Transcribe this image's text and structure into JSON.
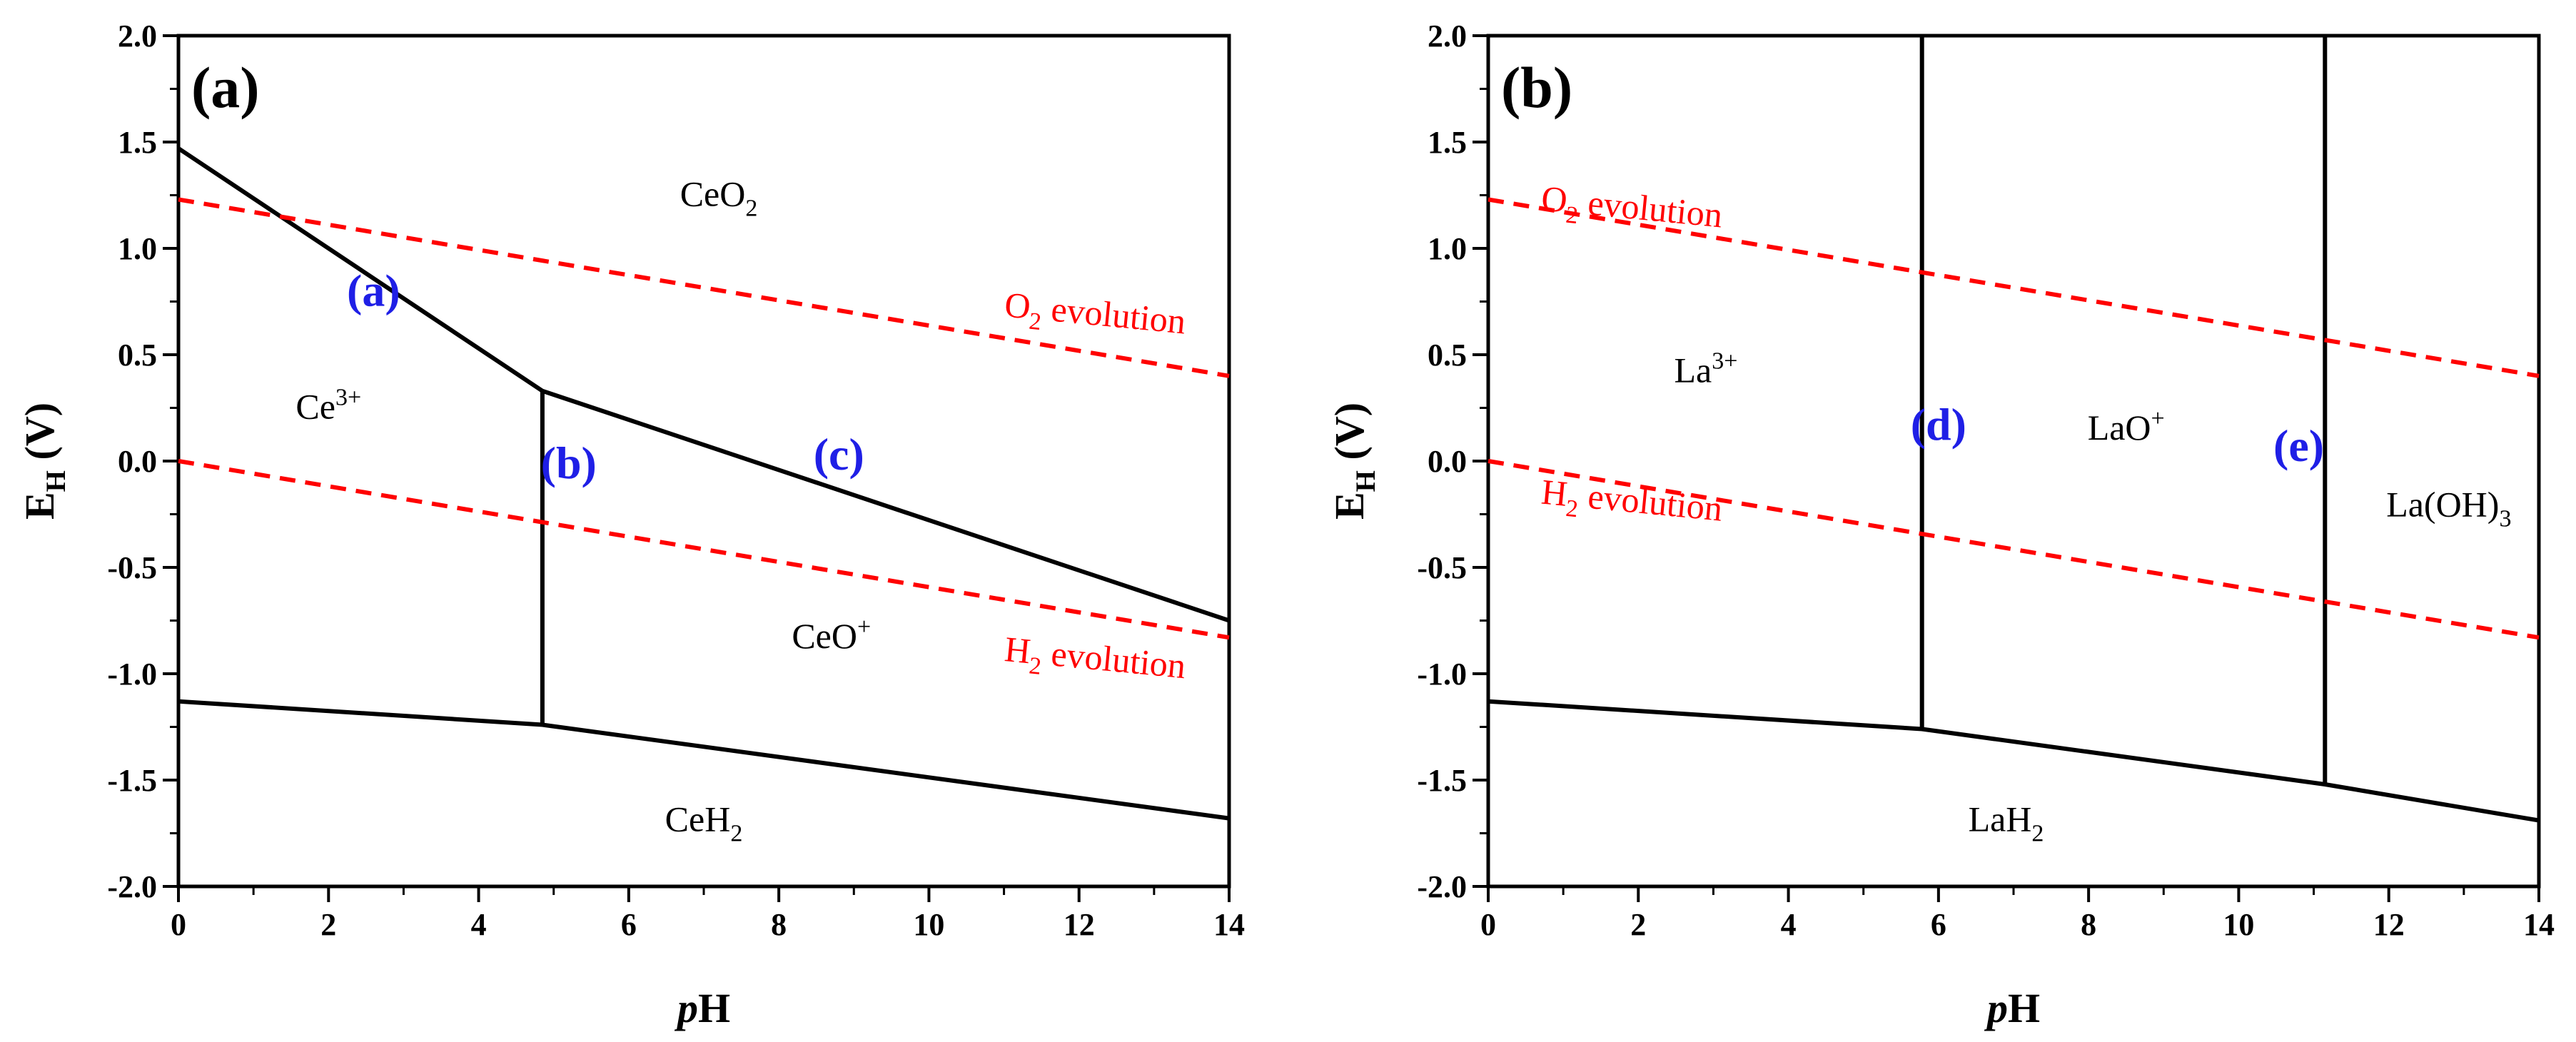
{
  "colors": {
    "boundary": "#000000",
    "reference": "#ff0000",
    "point_label": "#1f1fe6"
  },
  "chart_data": [
    {
      "type": "line",
      "panel_label": "(a)",
      "xlabel": {
        "italic": "p",
        "rest": "H"
      },
      "ylabel": {
        "main": "E",
        "sub": "H",
        "rest": " (V)"
      },
      "xlim": [
        0,
        14
      ],
      "ylim": [
        -2.0,
        2.0
      ],
      "x_ticks": [
        0,
        2,
        4,
        6,
        8,
        10,
        12,
        14
      ],
      "x_tick_labels": [
        "0",
        "2",
        "4",
        "6",
        "8",
        "10",
        "12",
        "14"
      ],
      "y_ticks": [
        2.0,
        1.5,
        1.0,
        0.5,
        0.0,
        -0.5,
        -1.0,
        -1.5,
        -2.0
      ],
      "y_tick_labels": [
        "2.0",
        "1.5",
        "1.0",
        "0.5",
        "0.0",
        "-0.5",
        "-1.0",
        "-1.5",
        "-2.0"
      ],
      "series": [
        {
          "name": "Ce3+/CeO2 boundary",
          "style": "solid",
          "points": [
            [
              0,
              1.47
            ],
            [
              4.85,
              0.33
            ]
          ]
        },
        {
          "name": "CeO+/CeO2 boundary",
          "style": "solid",
          "points": [
            [
              4.85,
              0.33
            ],
            [
              14,
              -0.75
            ]
          ]
        },
        {
          "name": "Ce3+/CeO+ boundary",
          "style": "solid",
          "points": [
            [
              4.85,
              0.33
            ],
            [
              4.85,
              -1.24
            ]
          ]
        },
        {
          "name": "hydride boundary",
          "style": "solid",
          "points": [
            [
              0,
              -1.13
            ],
            [
              4.85,
              -1.24
            ],
            [
              14,
              -1.68
            ]
          ]
        },
        {
          "name": "O2 evolution",
          "style": "dashed",
          "points": [
            [
              0,
              1.23
            ],
            [
              14,
              0.4
            ]
          ]
        },
        {
          "name": "H2 evolution",
          "style": "dashed",
          "points": [
            [
              0,
              0.0
            ],
            [
              14,
              -0.83
            ]
          ]
        }
      ],
      "regions": [
        {
          "main": "CeO",
          "sub": "2",
          "sup": "",
          "x": 7.2,
          "y": 1.2
        },
        {
          "main": "Ce",
          "sub": "",
          "sup": "3+",
          "x": 2.0,
          "y": 0.2
        },
        {
          "main": "CeO",
          "sub": "",
          "sup": "+",
          "x": 8.7,
          "y": -0.88
        },
        {
          "main": "CeH",
          "sub": "2",
          "sup": "",
          "x": 7.0,
          "y": -1.74
        }
      ],
      "point_labels": [
        {
          "text": "(a)",
          "x": 2.6,
          "y": 0.73
        },
        {
          "text": "(b)",
          "x": 5.2,
          "y": -0.08
        },
        {
          "text": "(c)",
          "x": 8.8,
          "y": -0.04
        }
      ],
      "reference_labels": [
        {
          "main": "O",
          "sub": "2",
          "rest": " evolution",
          "x": 12.2,
          "y": 0.64,
          "angle_deg": 5.5
        },
        {
          "main": "H",
          "sub": "2",
          "rest": " evolution",
          "x": 12.2,
          "y": -0.98,
          "angle_deg": 5.5
        }
      ]
    },
    {
      "type": "line",
      "panel_label": "(b)",
      "xlabel": {
        "italic": "p",
        "rest": "H"
      },
      "ylabel": {
        "main": "E",
        "sub": "H",
        "rest": " (V)"
      },
      "xlim": [
        0,
        14
      ],
      "ylim": [
        -2.0,
        2.0
      ],
      "x_ticks": [
        0,
        2,
        4,
        6,
        8,
        10,
        12,
        14
      ],
      "x_tick_labels": [
        "0",
        "2",
        "4",
        "6",
        "8",
        "10",
        "12",
        "14"
      ],
      "y_ticks": [
        2.0,
        1.5,
        1.0,
        0.5,
        0.0,
        -0.5,
        -1.0,
        -1.5,
        -2.0
      ],
      "y_tick_labels": [
        "2.0",
        "1.5",
        "1.0",
        "0.5",
        "0.0",
        "-0.5",
        "-1.0",
        "-1.5",
        "-2.0"
      ],
      "series": [
        {
          "name": "La3+/LaO+ boundary",
          "style": "solid",
          "points": [
            [
              5.78,
              2.0
            ],
            [
              5.78,
              -1.26
            ]
          ]
        },
        {
          "name": "LaO+/La(OH)3 boundary",
          "style": "solid",
          "points": [
            [
              11.15,
              2.0
            ],
            [
              11.15,
              -1.52
            ]
          ]
        },
        {
          "name": "hydride boundary",
          "style": "solid",
          "points": [
            [
              0,
              -1.13
            ],
            [
              5.78,
              -1.26
            ],
            [
              11.15,
              -1.52
            ],
            [
              14,
              -1.69
            ]
          ]
        },
        {
          "name": "O2 evolution",
          "style": "dashed",
          "points": [
            [
              0,
              1.23
            ],
            [
              14,
              0.4
            ]
          ]
        },
        {
          "name": "H2 evolution",
          "style": "dashed",
          "points": [
            [
              0,
              0.0
            ],
            [
              14,
              -0.83
            ]
          ]
        }
      ],
      "regions": [
        {
          "main": "La",
          "sub": "",
          "sup": "3+",
          "x": 2.9,
          "y": 0.37
        },
        {
          "main": "LaO",
          "sub": "",
          "sup": "+",
          "x": 8.5,
          "y": 0.1
        },
        {
          "main": "La(OH)",
          "sub": "3",
          "sup": "",
          "x": 12.8,
          "y": -0.26
        },
        {
          "main": "LaH",
          "sub": "2",
          "sup": "",
          "x": 6.9,
          "y": -1.74
        }
      ],
      "point_labels": [
        {
          "text": "(d)",
          "x": 6.0,
          "y": 0.1
        },
        {
          "text": "(e)",
          "x": 10.8,
          "y": 0.0
        }
      ],
      "reference_labels": [
        {
          "main": "O",
          "sub": "2",
          "rest": " evolution",
          "x": 1.9,
          "y": 1.14,
          "angle_deg": 5.5
        },
        {
          "main": "H",
          "sub": "2",
          "rest": " evolution",
          "x": 1.9,
          "y": -0.24,
          "angle_deg": 5.5
        }
      ]
    }
  ]
}
